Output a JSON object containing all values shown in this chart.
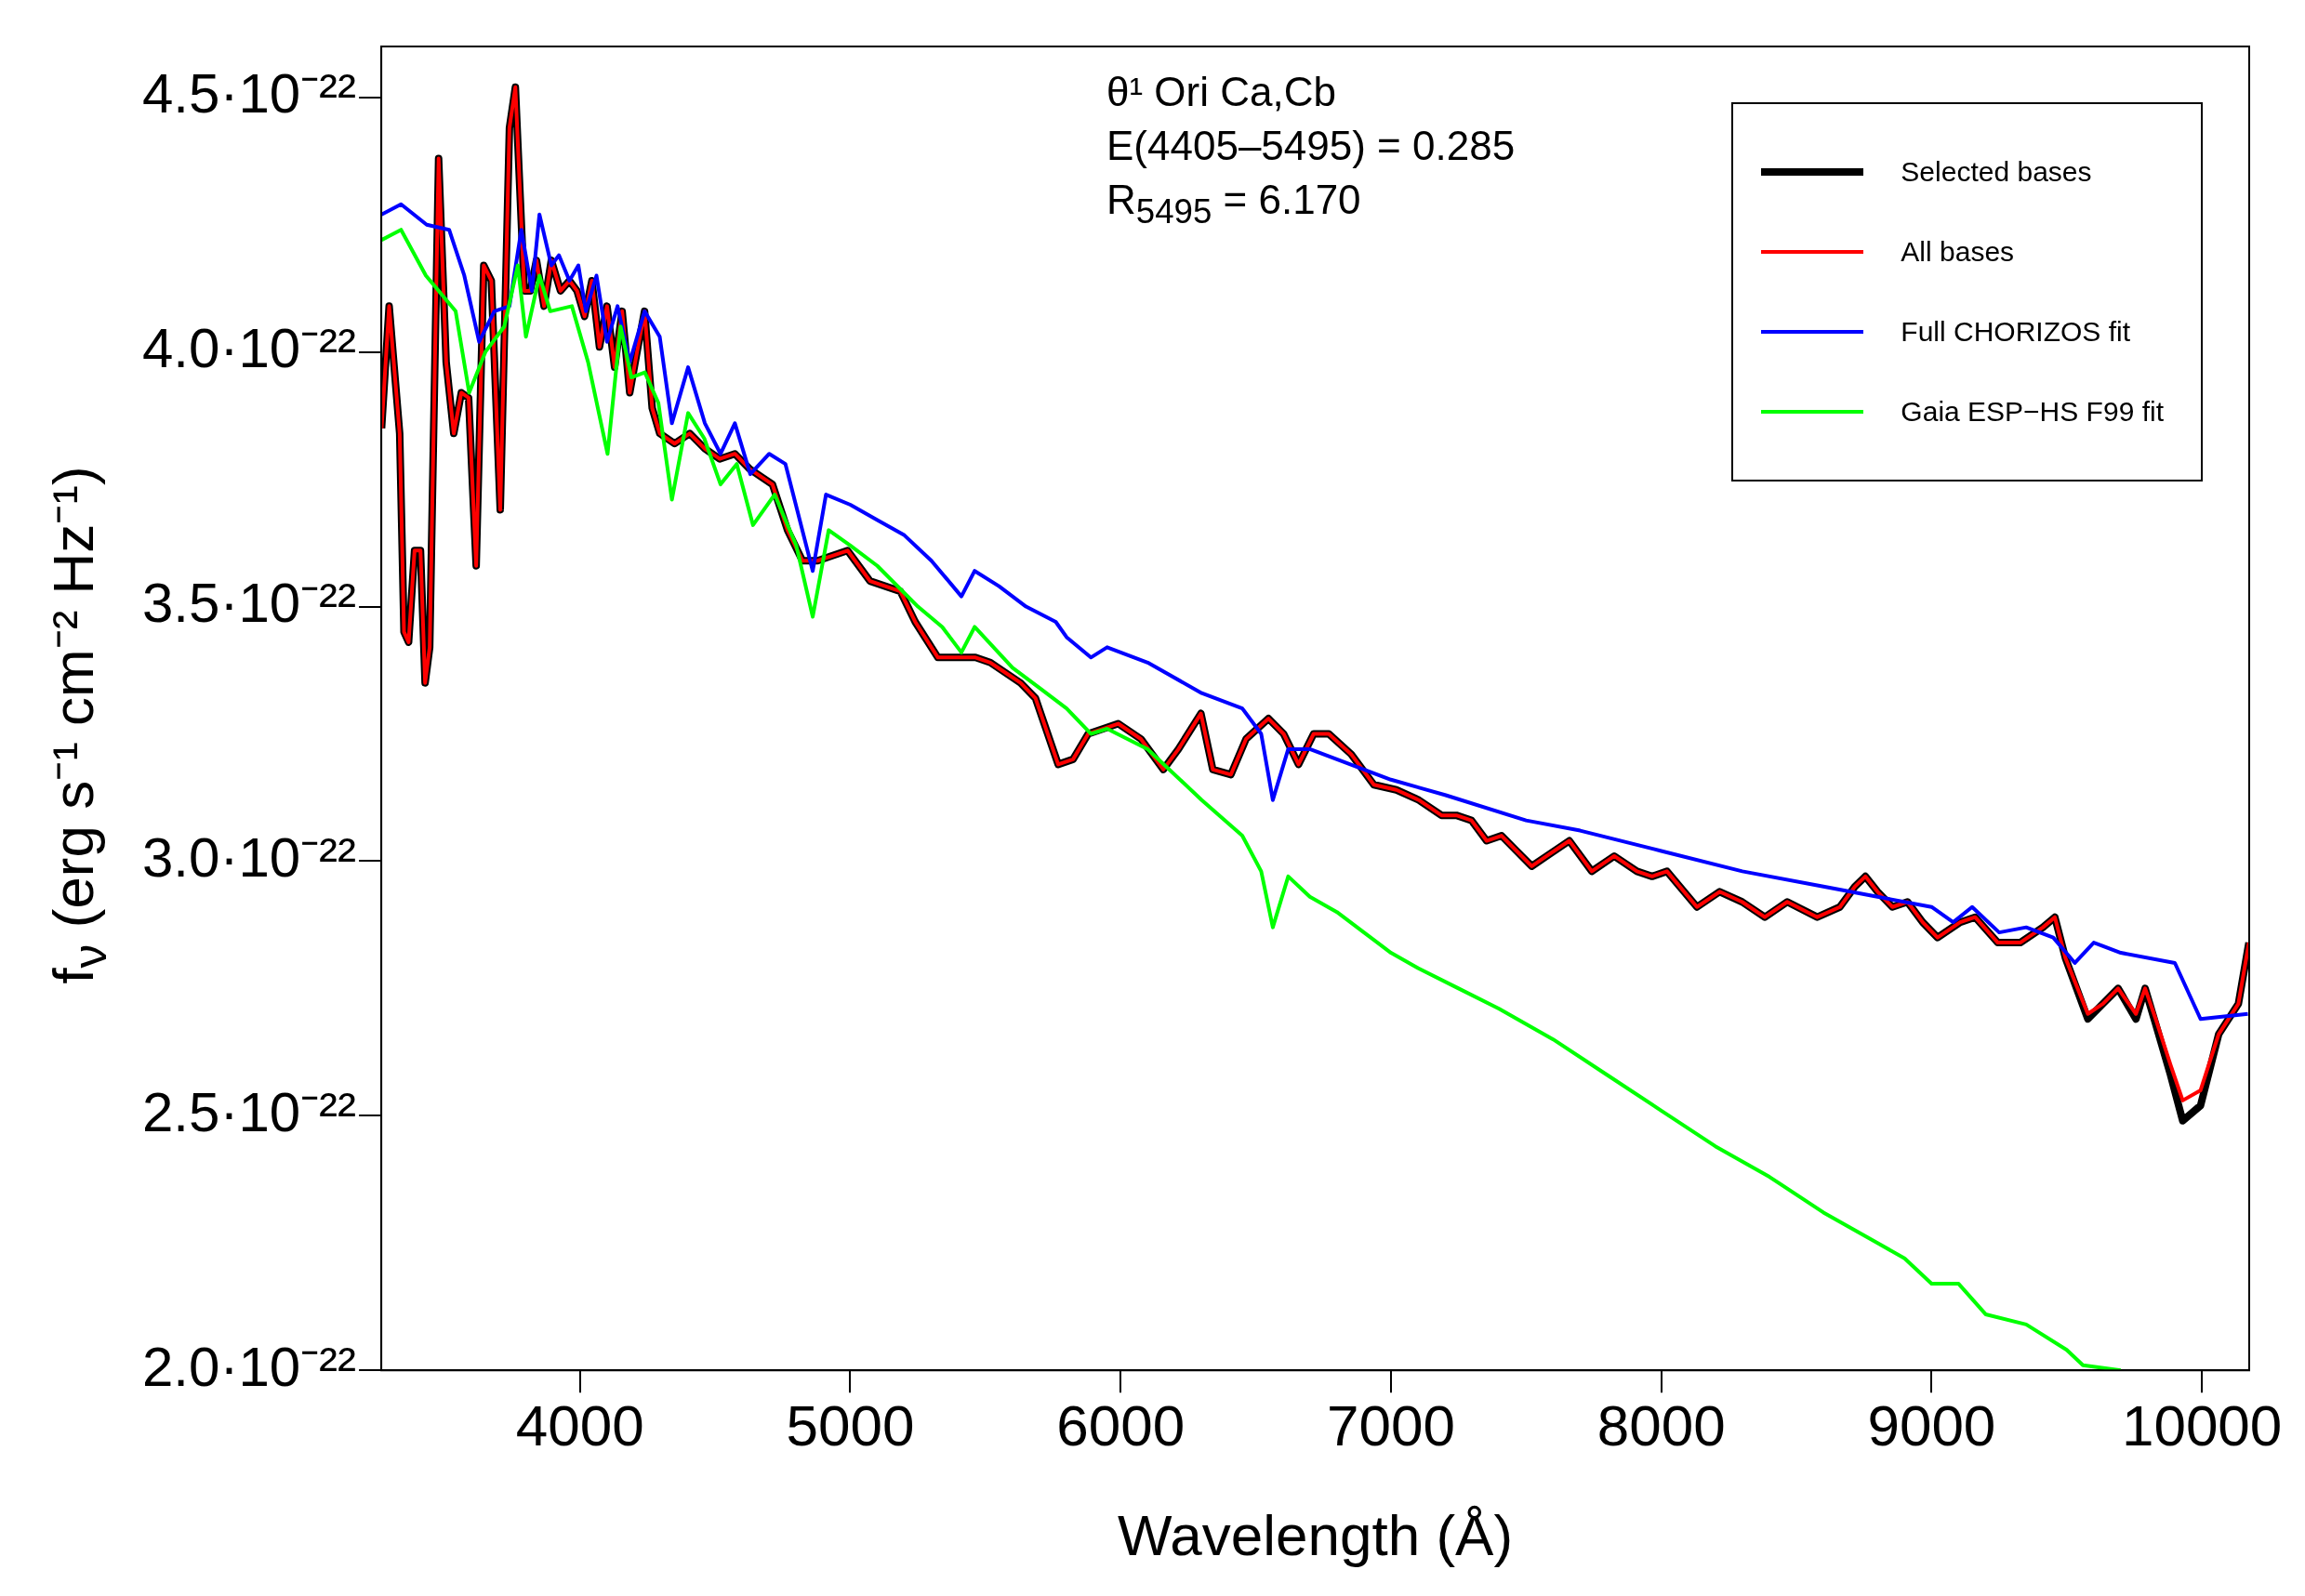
{
  "chart_data": {
    "type": "line",
    "xlabel": "Wavelength (Å)",
    "ylabel": "f$_{ν}$ (erg s⁻¹ cm⁻² Hz⁻¹)",
    "annotations": [
      "θ¹ Ori Ca,Cb",
      "E(4405–5495) = 0.285",
      "R$_{5495}$ = 6.170"
    ],
    "xlim": [
      3265,
      10175
    ],
    "xticks": [
      4000,
      5000,
      6000,
      7000,
      8000,
      9000,
      10000
    ],
    "ylim": [
      2e-22,
      4.6e-22
    ],
    "yticks": [
      {
        "value": 2e-22,
        "label": "2.0·10⁻²²"
      },
      {
        "value": 2.5e-22,
        "label": "2.5·10⁻²²"
      },
      {
        "value": 3e-22,
        "label": "3.0·10⁻²²"
      },
      {
        "value": 3.5e-22,
        "label": "3.5·10⁻²²"
      },
      {
        "value": 4e-22,
        "label": "4.0·10⁻²²"
      },
      {
        "value": 4.5e-22,
        "label": "4.5·10⁻²²"
      }
    ],
    "grid": false,
    "legend": "top right",
    "marker": "none",
    "line_style": "solid",
    "series": [
      {
        "name": "Selected bases",
        "color": "#000000",
        "x": [
          3266,
          3294,
          3333,
          3349,
          3366,
          3388,
          3410,
          3427,
          3444,
          3477,
          3505,
          3533,
          3561,
          3588,
          3616,
          3644,
          3672,
          3705,
          3739,
          3761,
          3794,
          3816,
          3839,
          3867,
          3894,
          3928,
          3961,
          3989,
          4017,
          4044,
          4072,
          4100,
          4128,
          4156,
          4184,
          4211,
          4239,
          4267,
          4295,
          4350,
          4406,
          4462,
          4517,
          4573,
          4628,
          4712,
          4768,
          4823,
          4879,
          4934,
          4990,
          5073,
          5129,
          5185,
          5240,
          5324,
          5407,
          5463,
          5518,
          5574,
          5630,
          5685,
          5769,
          5824,
          5880,
          5991,
          6075,
          6158,
          6214,
          6297,
          6341,
          6408,
          6464,
          6547,
          6603,
          6658,
          6714,
          6770,
          6853,
          6937,
          7020,
          7103,
          7187,
          7242,
          7298,
          7354,
          7409,
          7465,
          7521,
          7576,
          7660,
          7743,
          7826,
          7910,
          7966,
          8021,
          8132,
          8216,
          8299,
          8383,
          8466,
          8577,
          8661,
          8716,
          8755,
          8800,
          8855,
          8911,
          8967,
          9022,
          9106,
          9161,
          9245,
          9328,
          9412,
          9456,
          9495,
          9578,
          9634,
          9690,
          9756,
          9790,
          9829,
          9884,
          9929,
          9995,
          10062,
          10135,
          10174
        ],
        "values": [
          3.85e-22,
          4.09e-22,
          3.84e-22,
          3.45e-22,
          3.43e-22,
          3.61e-22,
          3.61e-22,
          3.35e-22,
          3.42e-22,
          4.38e-22,
          3.98e-22,
          3.84e-22,
          3.92e-22,
          3.91e-22,
          3.58e-22,
          4.17e-22,
          4.14e-22,
          3.69e-22,
          4.44e-22,
          4.52e-22,
          4.12e-22,
          4.12e-22,
          4.18e-22,
          4.09e-22,
          4.18e-22,
          4.12e-22,
          4.14e-22,
          4.12e-22,
          4.07e-22,
          4.14e-22,
          4.01e-22,
          4.09e-22,
          3.97e-22,
          4.08e-22,
          3.92e-22,
          4e-22,
          4.08e-22,
          3.89e-22,
          3.84e-22,
          3.82e-22,
          3.84e-22,
          3.81e-22,
          3.79e-22,
          3.8e-22,
          3.77e-22,
          3.74e-22,
          3.65e-22,
          3.59e-22,
          3.59e-22,
          3.6e-22,
          3.61e-22,
          3.55e-22,
          3.54e-22,
          3.53e-22,
          3.47e-22,
          3.4e-22,
          3.4e-22,
          3.4e-22,
          3.39e-22,
          3.37e-22,
          3.35e-22,
          3.32e-22,
          3.19e-22,
          3.2e-22,
          3.25e-22,
          3.27e-22,
          3.24e-22,
          3.18e-22,
          3.22e-22,
          3.29e-22,
          3.18e-22,
          3.17e-22,
          3.24e-22,
          3.28e-22,
          3.25e-22,
          3.19e-22,
          3.25e-22,
          3.25e-22,
          3.21e-22,
          3.15e-22,
          3.14e-22,
          3.12e-22,
          3.09e-22,
          3.09e-22,
          3.08e-22,
          3.04e-22,
          3.05e-22,
          3.02e-22,
          2.99e-22,
          3.01e-22,
          3.04e-22,
          2.98e-22,
          3.01e-22,
          2.98e-22,
          2.97e-22,
          2.98e-22,
          2.91e-22,
          2.94e-22,
          2.92e-22,
          2.89e-22,
          2.92e-22,
          2.89e-22,
          2.91e-22,
          2.95e-22,
          2.97e-22,
          2.94e-22,
          2.91e-22,
          2.92e-22,
          2.88e-22,
          2.85e-22,
          2.88e-22,
          2.89e-22,
          2.84e-22,
          2.84e-22,
          2.87e-22,
          2.89e-22,
          2.81e-22,
          2.69e-22,
          2.72e-22,
          2.75e-22,
          2.69e-22,
          2.75e-22,
          2.68e-22,
          2.58e-22,
          2.49e-22,
          2.52e-22,
          2.66e-22,
          2.72e-22,
          2.84e-22
        ]
      },
      {
        "name": "All bases",
        "color": "#ff0000",
        "x": [
          3266,
          3294,
          3333,
          3349,
          3366,
          3388,
          3410,
          3427,
          3444,
          3477,
          3505,
          3533,
          3561,
          3588,
          3616,
          3644,
          3672,
          3705,
          3739,
          3761,
          3794,
          3816,
          3839,
          3867,
          3894,
          3928,
          3961,
          3989,
          4017,
          4044,
          4072,
          4100,
          4128,
          4156,
          4184,
          4211,
          4239,
          4267,
          4295,
          4350,
          4406,
          4462,
          4517,
          4573,
          4628,
          4712,
          4768,
          4823,
          4879,
          4934,
          4990,
          5073,
          5129,
          5185,
          5240,
          5324,
          5407,
          5463,
          5518,
          5574,
          5630,
          5685,
          5769,
          5824,
          5880,
          5991,
          6075,
          6158,
          6214,
          6297,
          6341,
          6408,
          6464,
          6547,
          6603,
          6658,
          6714,
          6770,
          6853,
          6937,
          7020,
          7103,
          7187,
          7242,
          7298,
          7354,
          7409,
          7465,
          7521,
          7576,
          7660,
          7743,
          7826,
          7910,
          7966,
          8021,
          8132,
          8216,
          8299,
          8383,
          8466,
          8577,
          8661,
          8716,
          8755,
          8800,
          8855,
          8911,
          8967,
          9022,
          9106,
          9161,
          9245,
          9328,
          9412,
          9456,
          9495,
          9578,
          9634,
          9690,
          9756,
          9790,
          9829,
          9884,
          9929,
          9995,
          10062,
          10135,
          10174
        ],
        "values": [
          3.85e-22,
          4.09e-22,
          3.84e-22,
          3.45e-22,
          3.43e-22,
          3.61e-22,
          3.61e-22,
          3.35e-22,
          3.42e-22,
          4.38e-22,
          3.98e-22,
          3.84e-22,
          3.92e-22,
          3.91e-22,
          3.58e-22,
          4.17e-22,
          4.14e-22,
          3.69e-22,
          4.44e-22,
          4.52e-22,
          4.12e-22,
          4.12e-22,
          4.18e-22,
          4.09e-22,
          4.18e-22,
          4.12e-22,
          4.14e-22,
          4.12e-22,
          4.07e-22,
          4.14e-22,
          4.01e-22,
          4.09e-22,
          3.97e-22,
          4.08e-22,
          3.92e-22,
          4e-22,
          4.08e-22,
          3.89e-22,
          3.84e-22,
          3.82e-22,
          3.84e-22,
          3.81e-22,
          3.79e-22,
          3.8e-22,
          3.77e-22,
          3.74e-22,
          3.65e-22,
          3.59e-22,
          3.59e-22,
          3.6e-22,
          3.61e-22,
          3.55e-22,
          3.54e-22,
          3.53e-22,
          3.47e-22,
          3.4e-22,
          3.4e-22,
          3.4e-22,
          3.39e-22,
          3.37e-22,
          3.35e-22,
          3.32e-22,
          3.19e-22,
          3.2e-22,
          3.25e-22,
          3.27e-22,
          3.24e-22,
          3.18e-22,
          3.22e-22,
          3.29e-22,
          3.18e-22,
          3.17e-22,
          3.24e-22,
          3.28e-22,
          3.25e-22,
          3.19e-22,
          3.25e-22,
          3.25e-22,
          3.21e-22,
          3.15e-22,
          3.14e-22,
          3.12e-22,
          3.09e-22,
          3.09e-22,
          3.08e-22,
          3.04e-22,
          3.05e-22,
          3.02e-22,
          2.99e-22,
          3.01e-22,
          3.04e-22,
          2.98e-22,
          3.01e-22,
          2.98e-22,
          2.97e-22,
          2.98e-22,
          2.91e-22,
          2.94e-22,
          2.92e-22,
          2.89e-22,
          2.92e-22,
          2.89e-22,
          2.91e-22,
          2.95e-22,
          2.97e-22,
          2.94e-22,
          2.91e-22,
          2.92e-22,
          2.88e-22,
          2.85e-22,
          2.88e-22,
          2.89e-22,
          2.84e-22,
          2.84e-22,
          2.87e-22,
          2.89e-22,
          2.81e-22,
          2.7e-22,
          2.72e-22,
          2.75e-22,
          2.7e-22,
          2.75e-22,
          2.69e-22,
          2.6e-22,
          2.53e-22,
          2.55e-22,
          2.66e-22,
          2.72e-22,
          2.84e-22
        ]
      },
      {
        "name": "Full CHORIZOS fit",
        "color": "#0000ff",
        "x": [
          3266,
          3338,
          3433,
          3516,
          3572,
          3627,
          3683,
          3739,
          3783,
          3822,
          3850,
          3894,
          3922,
          3961,
          3994,
          4022,
          4061,
          4100,
          4139,
          4184,
          4239,
          4295,
          4340,
          4400,
          4462,
          4520,
          4573,
          4630,
          4700,
          4760,
          4861,
          4910,
          5000,
          5100,
          5200,
          5300,
          5411,
          5460,
          5550,
          5650,
          5760,
          5800,
          5890,
          5950,
          6100,
          6300,
          6450,
          6520,
          6563,
          6620,
          6700,
          6850,
          7000,
          7200,
          7500,
          7700,
          8000,
          8300,
          8600,
          8800,
          9000,
          9080,
          9150,
          9250,
          9350,
          9450,
          9530,
          9600,
          9700,
          9900,
          9995,
          10170
        ],
        "values": [
          4.27e-22,
          4.29e-22,
          4.25e-22,
          4.24e-22,
          4.15e-22,
          4.02e-22,
          4.08e-22,
          4.09e-22,
          4.24e-22,
          4.12e-22,
          4.27e-22,
          4.17e-22,
          4.19e-22,
          4.14e-22,
          4.17e-22,
          4.08e-22,
          4.15e-22,
          4.02e-22,
          4.09e-22,
          3.98e-22,
          4.08e-22,
          4.03e-22,
          3.86e-22,
          3.97e-22,
          3.86e-22,
          3.8e-22,
          3.86e-22,
          3.76e-22,
          3.8e-22,
          3.78e-22,
          3.57e-22,
          3.72e-22,
          3.7e-22,
          3.67e-22,
          3.64e-22,
          3.59e-22,
          3.52e-22,
          3.57e-22,
          3.54e-22,
          3.5e-22,
          3.47e-22,
          3.44e-22,
          3.4e-22,
          3.42e-22,
          3.39e-22,
          3.33e-22,
          3.3e-22,
          3.25e-22,
          3.12e-22,
          3.22e-22,
          3.22e-22,
          3.19e-22,
          3.16e-22,
          3.13e-22,
          3.08e-22,
          3.06e-22,
          3.02e-22,
          2.98e-22,
          2.95e-22,
          2.93e-22,
          2.91e-22,
          2.88e-22,
          2.91e-22,
          2.86e-22,
          2.87e-22,
          2.85e-22,
          2.8e-22,
          2.84e-22,
          2.82e-22,
          2.8e-22,
          2.69e-22,
          2.7e-22
        ]
      },
      {
        "name": "Gaia ESP−HS F99 fit",
        "color": "#00ff00",
        "x": [
          3266,
          3338,
          3430,
          3540,
          3590,
          3650,
          3720,
          3770,
          3800,
          3850,
          3890,
          3970,
          4030,
          4102,
          4150,
          4190,
          4240,
          4290,
          4340,
          4400,
          4460,
          4520,
          4580,
          4640,
          4720,
          4800,
          4861,
          4920,
          5000,
          5100,
          5250,
          5340,
          5411,
          5460,
          5600,
          5700,
          5800,
          5890,
          5950,
          6100,
          6300,
          6450,
          6520,
          6563,
          6620,
          6700,
          6800,
          6900,
          7000,
          7100,
          7250,
          7400,
          7600,
          7800,
          8000,
          8200,
          8400,
          8600,
          8800,
          8900,
          9000,
          9100,
          9200,
          9350,
          9500,
          9560,
          9700
        ],
        "values": [
          4.22e-22,
          4.24e-22,
          4.15e-22,
          4.08e-22,
          3.92e-22,
          4e-22,
          4.05e-22,
          4.17e-22,
          4.03e-22,
          4.15e-22,
          4.08e-22,
          4.09e-22,
          3.98e-22,
          3.8e-22,
          4.05e-22,
          3.95e-22,
          3.96e-22,
          3.9e-22,
          3.71e-22,
          3.88e-22,
          3.83e-22,
          3.74e-22,
          3.78e-22,
          3.66e-22,
          3.72e-22,
          3.62e-22,
          3.48e-22,
          3.65e-22,
          3.62e-22,
          3.58e-22,
          3.5e-22,
          3.46e-22,
          3.41e-22,
          3.46e-22,
          3.38e-22,
          3.34e-22,
          3.3e-22,
          3.25e-22,
          3.26e-22,
          3.22e-22,
          3.12e-22,
          3.05e-22,
          2.98e-22,
          2.87e-22,
          2.97e-22,
          2.93e-22,
          2.9e-22,
          2.86e-22,
          2.82e-22,
          2.79e-22,
          2.75e-22,
          2.71e-22,
          2.65e-22,
          2.58e-22,
          2.51e-22,
          2.44e-22,
          2.38e-22,
          2.31e-22,
          2.25e-22,
          2.22e-22,
          2.17e-22,
          2.17e-22,
          2.11e-22,
          2.09e-22,
          2.04e-22,
          2.01e-22,
          2e-22
        ]
      }
    ]
  }
}
